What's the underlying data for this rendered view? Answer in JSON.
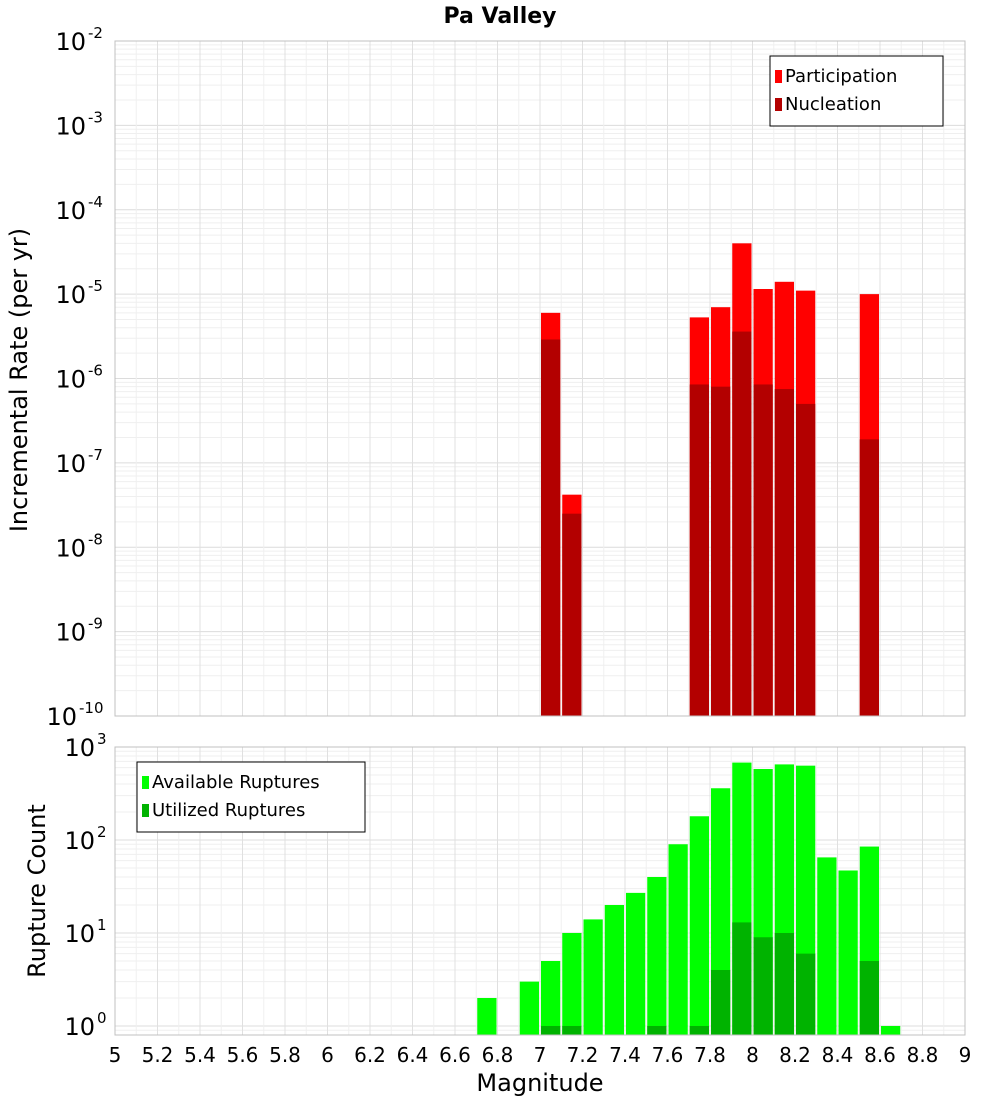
{
  "chart_data": {
    "type": "bar",
    "title": "Pa Valley",
    "xlabel": "Magnitude",
    "xlim": [
      5,
      9
    ],
    "x_ticks": [
      "5",
      "5.2",
      "5.4",
      "5.6",
      "5.8",
      "6",
      "6.2",
      "6.4",
      "6.6",
      "6.8",
      "7",
      "7.2",
      "7.4",
      "7.6",
      "7.8",
      "8",
      "8.2",
      "8.4",
      "8.6",
      "8.8",
      "9"
    ],
    "bin_width": 0.1,
    "grid": true,
    "panels": [
      {
        "ylabel": "Incremental Rate (per yr)",
        "yscale": "log",
        "ylim": [
          1e-10,
          0.01
        ],
        "y_tick_exponents": [
          "-10",
          "-9",
          "-8",
          "-7",
          "-6",
          "-5",
          "-4",
          "-3",
          "-2"
        ],
        "legend_position": "top-right",
        "series": [
          {
            "name": "Participation",
            "color": "#ff0000",
            "points": [
              [
                7.05,
                6e-06
              ],
              [
                7.15,
                4.2e-08
              ],
              [
                7.75,
                5.3e-06
              ],
              [
                7.85,
                7e-06
              ],
              [
                7.95,
                4e-05
              ],
              [
                8.05,
                1.15e-05
              ],
              [
                8.15,
                1.4e-05
              ],
              [
                8.25,
                1.1e-05
              ],
              [
                8.55,
                1e-05
              ]
            ]
          },
          {
            "name": "Nucleation",
            "color": "#b30000",
            "points": [
              [
                7.05,
                2.9e-06
              ],
              [
                7.15,
                2.5e-08
              ],
              [
                7.75,
                8.5e-07
              ],
              [
                7.85,
                8e-07
              ],
              [
                7.95,
                3.6e-06
              ],
              [
                8.05,
                8.5e-07
              ],
              [
                8.15,
                7.5e-07
              ],
              [
                8.25,
                5e-07
              ],
              [
                8.55,
                1.9e-07
              ]
            ]
          }
        ]
      },
      {
        "ylabel": "Rupture Count",
        "yscale": "log",
        "ylim": [
          0.8,
          1000
        ],
        "y_tick_exponents": [
          "0",
          "1",
          "2",
          "3"
        ],
        "legend_position": "top-left",
        "series": [
          {
            "name": "Available Ruptures",
            "color": "#00ff00",
            "points": [
              [
                6.75,
                2
              ],
              [
                6.95,
                3
              ],
              [
                7.05,
                5
              ],
              [
                7.15,
                10
              ],
              [
                7.25,
                14
              ],
              [
                7.35,
                20
              ],
              [
                7.45,
                27
              ],
              [
                7.55,
                40
              ],
              [
                7.65,
                90
              ],
              [
                7.75,
                180
              ],
              [
                7.85,
                360
              ],
              [
                7.95,
                680
              ],
              [
                8.05,
                580
              ],
              [
                8.15,
                650
              ],
              [
                8.25,
                630
              ],
              [
                8.35,
                65
              ],
              [
                8.45,
                47
              ],
              [
                8.55,
                85
              ],
              [
                8.65,
                1
              ]
            ]
          },
          {
            "name": "Utilized Ruptures",
            "color": "#00b300",
            "points": [
              [
                7.05,
                1
              ],
              [
                7.15,
                1
              ],
              [
                7.55,
                1
              ],
              [
                7.75,
                1
              ],
              [
                7.85,
                4
              ],
              [
                7.95,
                13
              ],
              [
                8.05,
                9
              ],
              [
                8.15,
                10
              ],
              [
                8.25,
                6
              ],
              [
                8.55,
                5
              ]
            ]
          }
        ]
      }
    ]
  }
}
